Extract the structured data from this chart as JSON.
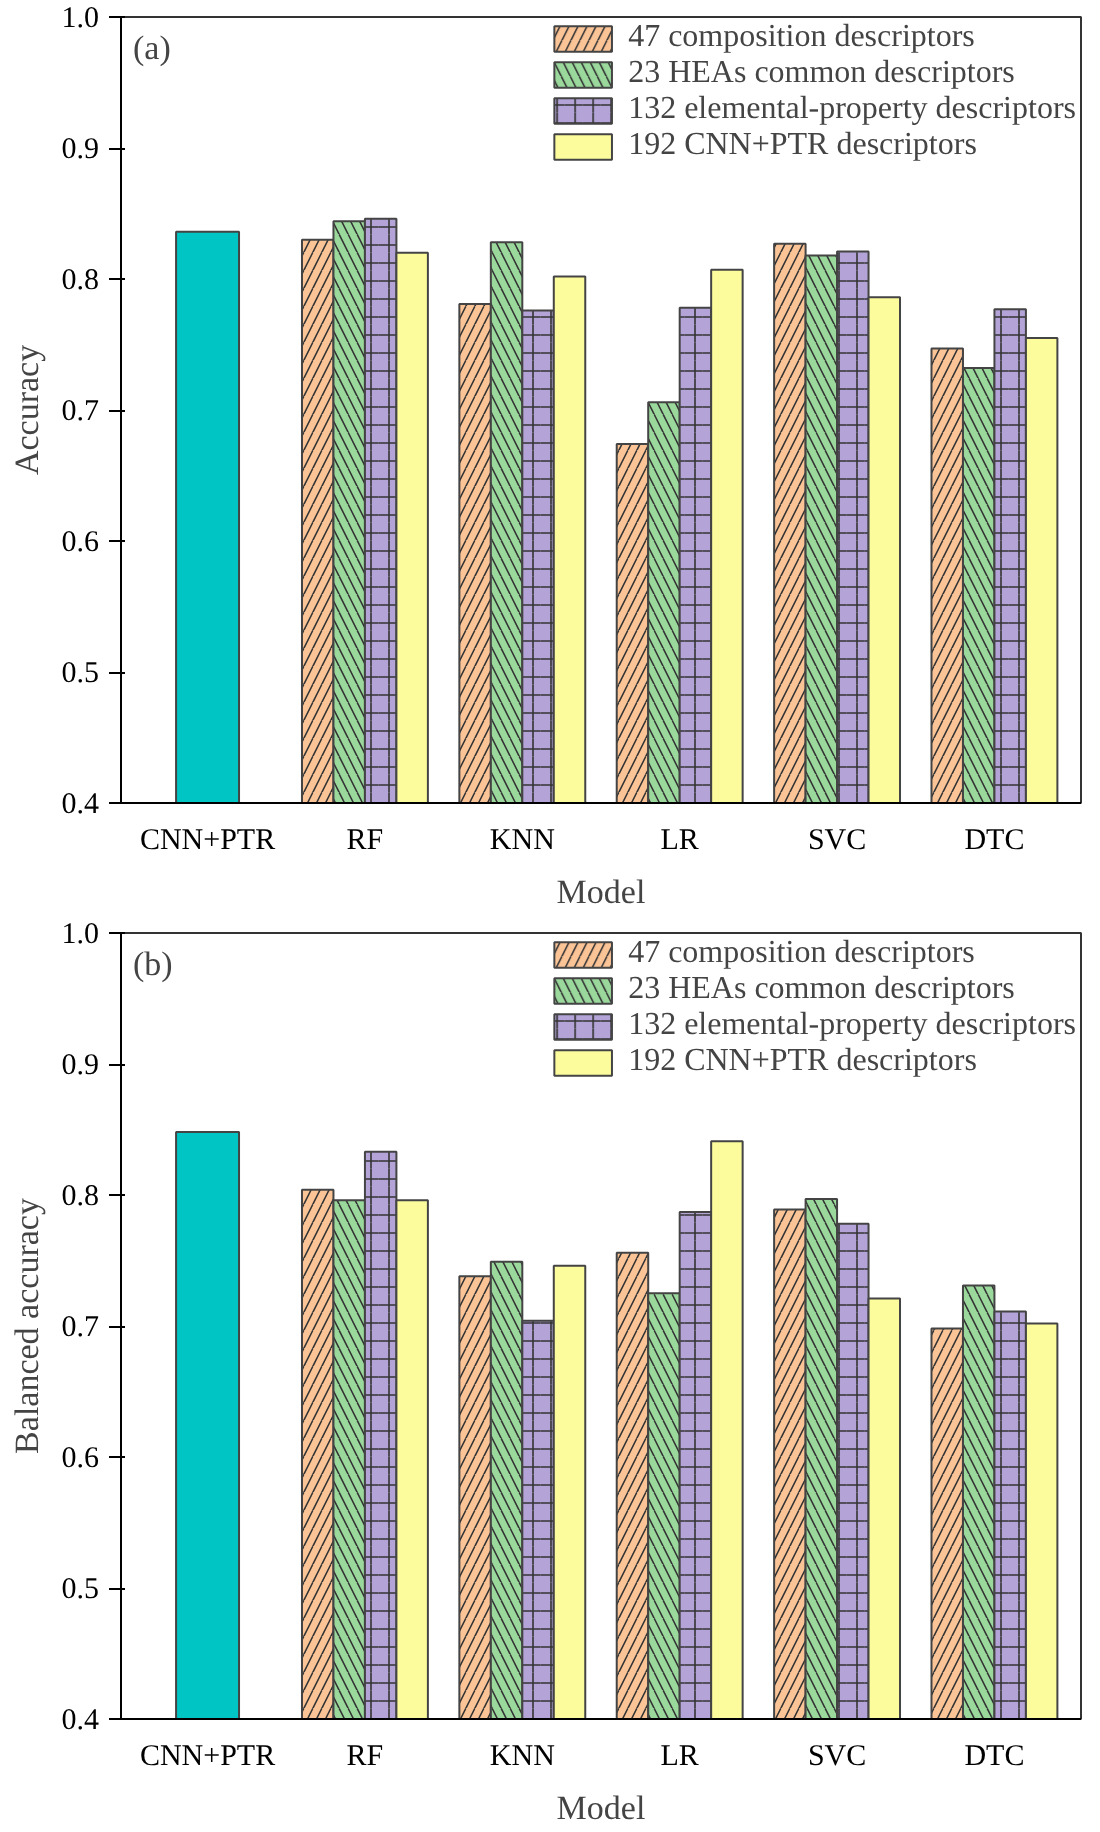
{
  "chart_data": [
    {
      "type": "bar",
      "xlabel": "Model",
      "ylabel": "Accuracy",
      "annotations": [
        "(a)"
      ],
      "categories": [
        "CNN+PTR",
        "RF",
        "KNN",
        "LR",
        "SVC",
        "DTC"
      ],
      "series": [
        {
          "color": "#00c5c5",
          "values": [
            0.836,
            null,
            null,
            null,
            null,
            null
          ]
        },
        {
          "name": "47 composition descriptors",
          "color": "#fbc497",
          "values": [
            null,
            0.83,
            0.781,
            0.674,
            0.827,
            0.747
          ]
        },
        {
          "name": "23 HEAs common descriptors",
          "color": "#9ad89c",
          "values": [
            null,
            0.844,
            0.828,
            0.706,
            0.818,
            0.732
          ]
        },
        {
          "name": "132 elemental-property descriptors",
          "color": "#b3a3d6",
          "values": [
            null,
            0.846,
            0.776,
            0.778,
            0.821,
            0.777
          ]
        },
        {
          "name": "192 CNN+PTR descriptors",
          "color": "#fdfc9d",
          "values": [
            null,
            0.82,
            0.802,
            0.807,
            0.786,
            0.755
          ]
        }
      ],
      "ylim": [
        0.4,
        1.0
      ],
      "yticks": [
        {
          "value": 0.4,
          "label": "0.4"
        },
        {
          "value": 0.5,
          "label": "0.5"
        },
        {
          "value": 0.6,
          "label": "0.6"
        },
        {
          "value": 0.7,
          "label": "0.7"
        },
        {
          "value": 0.8,
          "label": "0.8"
        },
        {
          "value": 0.9,
          "label": "0.9"
        },
        {
          "value": 1.0,
          "label": "1.0"
        }
      ],
      "legend": "top right",
      "grid": false
    },
    {
      "type": "bar",
      "xlabel": "Model",
      "ylabel": "Balanced accuracy",
      "annotations": [
        "(b)"
      ],
      "categories": [
        "CNN+PTR",
        "RF",
        "KNN",
        "LR",
        "SVC",
        "DTC"
      ],
      "series": [
        {
          "color": "#00c5c5",
          "values": [
            0.848,
            null,
            null,
            null,
            null,
            null
          ]
        },
        {
          "name": "47 composition descriptors",
          "color": "#fbc497",
          "values": [
            null,
            0.804,
            0.738,
            0.756,
            0.789,
            0.698
          ]
        },
        {
          "name": "23 HEAs common descriptors",
          "color": "#9ad89c",
          "values": [
            null,
            0.796,
            0.749,
            0.725,
            0.797,
            0.731
          ]
        },
        {
          "name": "132 elemental-property descriptors",
          "color": "#b3a3d6",
          "values": [
            null,
            0.833,
            0.704,
            0.787,
            0.778,
            0.711
          ]
        },
        {
          "name": "192 CNN+PTR descriptors",
          "color": "#fdfc9d",
          "values": [
            null,
            0.796,
            0.746,
            0.841,
            0.721,
            0.702
          ]
        }
      ],
      "ylim": [
        0.4,
        1.0
      ],
      "yticks": [
        {
          "value": 0.4,
          "label": "0.4"
        },
        {
          "value": 0.5,
          "label": "0.5"
        },
        {
          "value": 0.6,
          "label": "0.6"
        },
        {
          "value": 0.7,
          "label": "0.7"
        },
        {
          "value": 0.8,
          "label": "0.8"
        },
        {
          "value": 0.9,
          "label": "0.9"
        },
        {
          "value": 1.0,
          "label": "1.0"
        }
      ],
      "legend": "top right",
      "grid": false
    }
  ]
}
